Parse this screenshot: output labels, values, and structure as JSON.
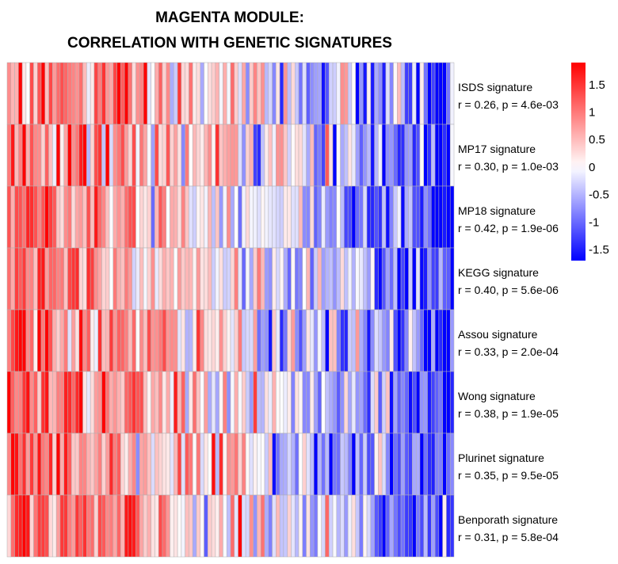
{
  "chart_data": {
    "type": "heatmap",
    "title": [
      "MAGENTA MODULE:",
      "CORRELATION WITH GENETIC SIGNATURES"
    ],
    "rows": [
      {
        "name": "ISDS signature",
        "stat": "r = 0.26, p = 4.6e-03",
        "r": 0.26
      },
      {
        "name": "MP17 signature",
        "stat": "r = 0.30, p = 1.0e-03",
        "r": 0.3
      },
      {
        "name": "MP18 signature",
        "stat": "r = 0.42, p = 1.9e-06",
        "r": 0.42
      },
      {
        "name": "KEGG signature",
        "stat": "r = 0.40, p = 5.6e-06",
        "r": 0.4
      },
      {
        "name": "Assou signature",
        "stat": "r = 0.33, p = 2.0e-04",
        "r": 0.33
      },
      {
        "name": "Wong signature",
        "stat": "r = 0.38, p = 1.9e-05",
        "r": 0.38
      },
      {
        "name": "Plurinet signature",
        "stat": "r = 0.35, p = 9.5e-05",
        "r": 0.35
      },
      {
        "name": "Benporath signature",
        "stat": "r = 0.31, p = 5.8e-04",
        "r": 0.31
      }
    ],
    "n_samples": 118,
    "value_range": [
      -1.7,
      1.9
    ],
    "color_scale": {
      "low": "#0000ff",
      "mid": "#ffffff",
      "high": "#ff0000"
    },
    "legend": {
      "position": "right",
      "ticks": [
        {
          "value": 1.5,
          "label": "1.5"
        },
        {
          "value": 1,
          "label": "1"
        },
        {
          "value": 0.5,
          "label": "0.5"
        },
        {
          "value": 0,
          "label": "0"
        },
        {
          "value": -0.5,
          "label": "-0.5"
        },
        {
          "value": -1,
          "label": "-1"
        },
        {
          "value": -1.5,
          "label": "-1.5"
        }
      ]
    },
    "cell_border_color": "#b0b0b0"
  }
}
